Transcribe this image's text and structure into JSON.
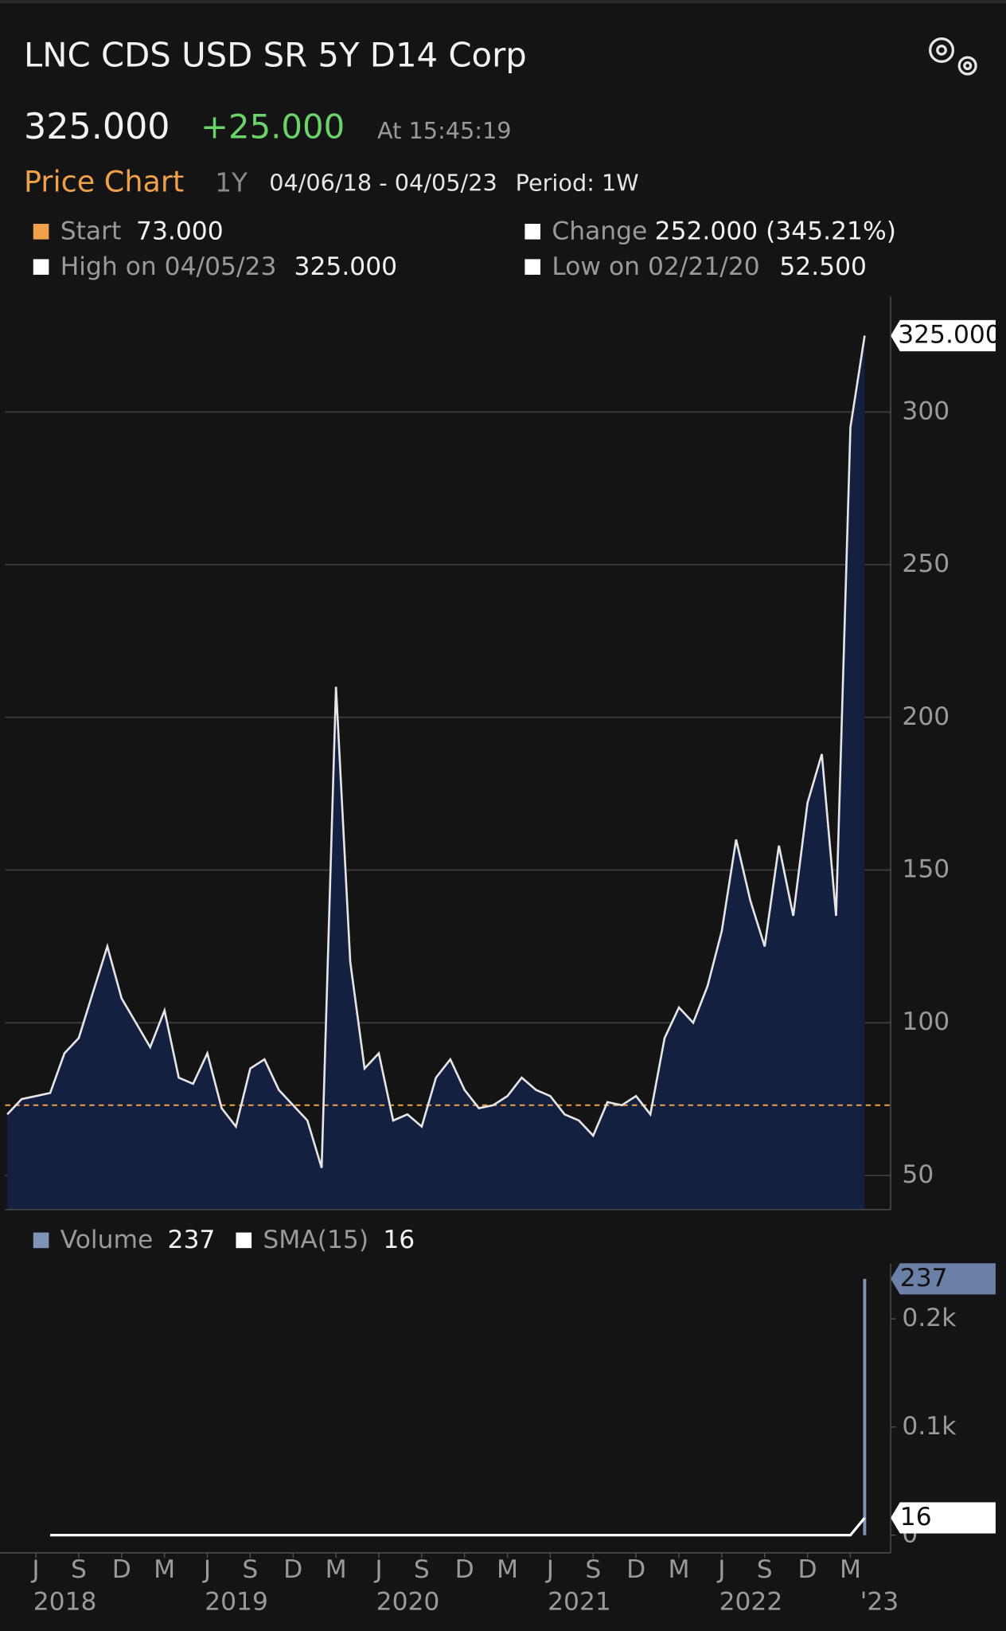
{
  "header": {
    "title": "LNC CDS USD SR 5Y D14 Corp",
    "price": "325.000",
    "change": "+25.000",
    "time": "At 15:45:19",
    "chart_label": "Price Chart",
    "range": "1Y",
    "dates": "04/06/18 - 04/05/23",
    "period": "Period: 1W",
    "stats": [
      {
        "label": "Start",
        "value": "73.000"
      },
      {
        "label": "Change",
        "value": "252.000 (345.21%)"
      },
      {
        "label": "High on 04/05/23",
        "value": "325.000"
      },
      {
        "label": "Low on 02/21/20",
        "value": "52.500"
      }
    ]
  },
  "chart_data": [
    {
      "type": "area",
      "color": "#e6e6e6",
      "fill": "#13203f",
      "x": [
        "2018-04",
        "2018-05",
        "2018-06",
        "2018-07",
        "2018-08",
        "2018-09",
        "2018-10",
        "2018-11",
        "2018-12",
        "2019-01",
        "2019-02",
        "2019-03",
        "2019-04",
        "2019-05",
        "2019-06",
        "2019-07",
        "2019-08",
        "2019-09",
        "2019-10",
        "2019-11",
        "2019-12",
        "2020-01",
        "2020-02",
        "2020-03",
        "2020-04",
        "2020-05",
        "2020-06",
        "2020-07",
        "2020-08",
        "2020-09",
        "2020-10",
        "2020-11",
        "2020-12",
        "2021-01",
        "2021-02",
        "2021-03",
        "2021-04",
        "2021-05",
        "2021-06",
        "2021-07",
        "2021-08",
        "2021-09",
        "2021-10",
        "2021-11",
        "2021-12",
        "2022-01",
        "2022-02",
        "2022-03",
        "2022-04",
        "2022-05",
        "2022-06",
        "2022-07",
        "2022-08",
        "2022-09",
        "2022-10",
        "2022-11",
        "2022-12",
        "2023-01",
        "2023-02",
        "2023-03",
        "2023-04"
      ],
      "values": [
        70,
        75,
        76,
        77,
        90,
        95,
        110,
        125,
        108,
        100,
        92,
        104,
        82,
        80,
        90,
        72,
        66,
        85,
        88,
        78,
        73,
        68,
        52.5,
        210,
        120,
        85,
        90,
        68,
        70,
        66,
        82,
        88,
        78,
        72,
        73,
        76,
        82,
        78,
        76,
        70,
        68,
        63,
        74,
        73,
        76,
        70,
        95,
        105,
        100,
        112,
        130,
        160,
        140,
        125,
        158,
        135,
        172,
        188,
        135,
        295,
        325
      ],
      "reference_line": 73,
      "reference_color": "#f0a04b",
      "ylim": [
        38.8,
        337.8
      ],
      "yticks": [
        50,
        100,
        150,
        200,
        250,
        300
      ],
      "grid": true
    },
    {
      "type": "volume",
      "x": [
        "2018-04",
        "2018-05",
        "2018-06",
        "2018-07",
        "2018-08",
        "2018-09",
        "2018-10",
        "2018-11",
        "2018-12",
        "2019-01",
        "2019-02",
        "2019-03",
        "2019-04",
        "2019-05",
        "2019-06",
        "2019-07",
        "2019-08",
        "2019-09",
        "2019-10",
        "2019-11",
        "2019-12",
        "2020-01",
        "2020-02",
        "2020-03",
        "2020-04",
        "2020-05",
        "2020-06",
        "2020-07",
        "2020-08",
        "2020-09",
        "2020-10",
        "2020-11",
        "2020-12",
        "2021-01",
        "2021-02",
        "2021-03",
        "2021-04",
        "2021-05",
        "2021-06",
        "2021-07",
        "2021-08",
        "2021-09",
        "2021-10",
        "2021-11",
        "2021-12",
        "2022-01",
        "2022-02",
        "2022-03",
        "2022-04",
        "2022-05",
        "2022-06",
        "2022-07",
        "2022-08",
        "2022-09",
        "2022-10",
        "2022-11",
        "2022-12",
        "2023-01",
        "2023-02",
        "2023-03",
        "2023-04"
      ],
      "series": [
        {
          "name": "Volume",
          "color": "#7f93b6",
          "values": [
            0,
            0,
            0,
            0,
            0,
            0,
            0,
            0,
            0,
            0,
            0,
            0,
            0,
            0,
            0,
            0,
            0,
            0,
            0,
            0,
            0,
            0,
            0,
            0,
            0,
            0,
            0,
            0,
            0,
            0,
            0,
            0,
            0,
            0,
            0,
            0,
            0,
            0,
            0,
            0,
            0,
            0,
            0,
            0,
            0,
            0,
            0,
            0,
            0,
            0,
            0,
            0,
            0,
            0,
            0,
            0,
            0,
            0,
            0,
            0,
            237
          ]
        },
        {
          "name": "SMA(15)",
          "color": "#ffffff",
          "values": [
            null,
            null,
            null,
            0,
            0,
            0,
            0,
            0,
            0,
            0,
            0,
            0,
            0,
            0,
            0,
            0,
            0,
            0,
            0,
            0,
            0,
            0,
            0,
            0,
            0,
            0,
            0,
            0,
            0,
            0,
            0,
            0,
            0,
            0,
            0,
            0,
            0,
            0,
            0,
            0,
            0,
            0,
            0,
            0,
            0,
            0,
            0,
            0,
            0,
            0,
            0,
            0,
            0,
            0,
            0,
            0,
            0,
            0,
            0,
            0,
            16
          ]
        }
      ],
      "ylim": [
        -16.3,
        251
      ],
      "yticks": [
        0,
        {
          "value": 100,
          "label": "0.1k"
        },
        {
          "value": 200,
          "label": "0.2k"
        }
      ],
      "month_ticks": [
        {
          "value": "2018-06",
          "label": "J"
        },
        {
          "value": "2018-09",
          "label": "S"
        },
        {
          "value": "2018-12",
          "label": "D"
        },
        {
          "value": "2019-03",
          "label": "M"
        },
        {
          "value": "2019-06",
          "label": "J"
        },
        {
          "value": "2019-09",
          "label": "S"
        },
        {
          "value": "2019-12",
          "label": "D"
        },
        {
          "value": "2020-03",
          "label": "M"
        },
        {
          "value": "2020-06",
          "label": "J"
        },
        {
          "value": "2020-09",
          "label": "S"
        },
        {
          "value": "2020-12",
          "label": "D"
        },
        {
          "value": "2021-03",
          "label": "M"
        },
        {
          "value": "2021-06",
          "label": "J"
        },
        {
          "value": "2021-09",
          "label": "S"
        },
        {
          "value": "2021-12",
          "label": "D"
        },
        {
          "value": "2022-03",
          "label": "M"
        },
        {
          "value": "2022-06",
          "label": "J"
        },
        {
          "value": "2022-09",
          "label": "S"
        },
        {
          "value": "2022-12",
          "label": "D"
        },
        {
          "value": "2023-03",
          "label": "M"
        }
      ],
      "year_ticks": [
        {
          "value": "2018-06",
          "label": "2018"
        },
        {
          "value": "2019-06",
          "label": "2019"
        },
        {
          "value": "2020-06",
          "label": "2020"
        },
        {
          "value": "2021-06",
          "label": "2021"
        },
        {
          "value": "2022-06",
          "label": "2022"
        },
        {
          "value": "2023-03",
          "label": "'23"
        }
      ]
    }
  ]
}
